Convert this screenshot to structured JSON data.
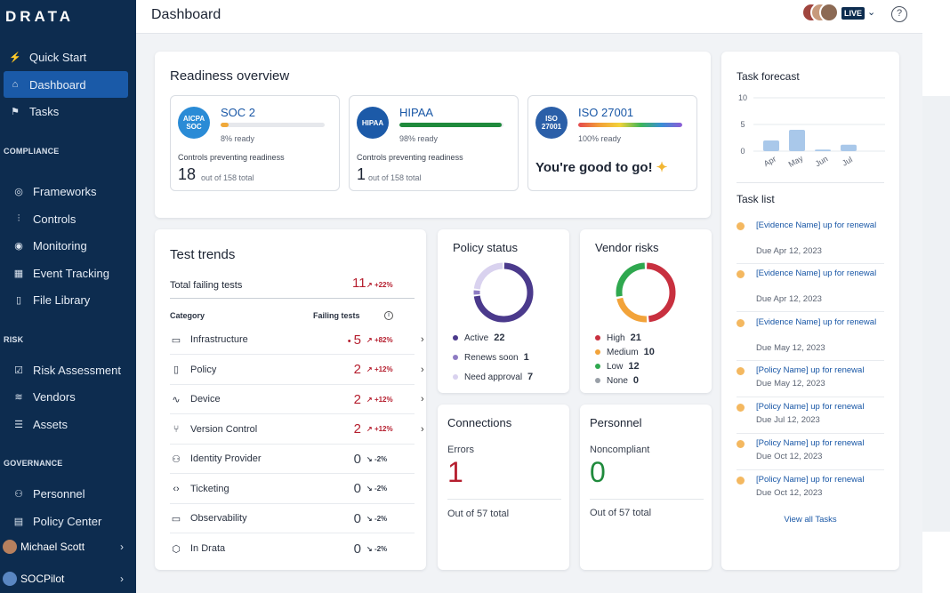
{
  "brand": "DRATA",
  "sidebar": {
    "top_items": [
      {
        "label": "Quick Start",
        "icon": "bolt-icon"
      },
      {
        "label": "Dashboard",
        "icon": "home-icon",
        "active": true
      },
      {
        "label": "Tasks",
        "icon": "flag-icon"
      }
    ],
    "sections": [
      {
        "title": "COMPLIANCE",
        "items": [
          {
            "label": "Frameworks",
            "icon": "compass-icon"
          },
          {
            "label": "Controls",
            "icon": "sliders-icon"
          },
          {
            "label": "Monitoring",
            "icon": "radar-icon"
          },
          {
            "label": "Event Tracking",
            "icon": "calendar-icon"
          },
          {
            "label": "File Library",
            "icon": "file-icon"
          }
        ]
      },
      {
        "title": "RISK",
        "items": [
          {
            "label": "Risk Assessment",
            "icon": "checkbox-icon"
          },
          {
            "label": "Vendors",
            "icon": "layers-icon"
          },
          {
            "label": "Assets",
            "icon": "list-icon"
          }
        ]
      },
      {
        "title": "GOVERNANCE",
        "items": [
          {
            "label": "Personnel",
            "icon": "people-icon"
          },
          {
            "label": "Policy Center",
            "icon": "document-icon"
          }
        ]
      }
    ],
    "user": {
      "name": "Michael Scott"
    },
    "workspace": {
      "name": "SOCPilot"
    }
  },
  "header": {
    "title": "Dashboard",
    "live_label": "LIVE"
  },
  "readiness": {
    "title": "Readiness overview",
    "frameworks": [
      {
        "name": "SOC 2",
        "badge": "AICPA SOC",
        "ready_pct": 8,
        "ready_text": "8% ready",
        "ctrl_label": "Controls preventing readiness",
        "count": "18",
        "total": "out of 158 total",
        "bar_color": "#f0a93a",
        "badge_color": "#2a8bd6"
      },
      {
        "name": "HIPAA",
        "badge": "HIPAA",
        "ready_pct": 98,
        "ready_text": "98% ready",
        "ctrl_label": "Controls preventing readiness",
        "count": "1",
        "total": "out of 158 total",
        "bar_color": "#1f8a3c",
        "badge_color": "#1c5aa8"
      },
      {
        "name": "ISO 27001",
        "badge": "ISO 27001",
        "ready_pct": 100,
        "ready_text": "100% ready",
        "good_text": "You're good to go!",
        "badge_color": "#2b5fa8"
      }
    ]
  },
  "test_trends": {
    "title": "Test trends",
    "total_label": "Total failing tests",
    "total_value": "11",
    "total_delta": "+22%",
    "col_category": "Category",
    "col_failing": "Failing tests",
    "rows": [
      {
        "label": "Infrastructure",
        "icon": "server-icon",
        "value": "5",
        "delta": "+82%",
        "bullet": "•",
        "red": true,
        "chevron": true
      },
      {
        "label": "Policy",
        "icon": "page-icon",
        "value": "2",
        "delta": "+12%",
        "red": true,
        "chevron": true
      },
      {
        "label": "Device",
        "icon": "pulse-icon",
        "value": "2",
        "delta": "+12%",
        "red": true,
        "chevron": true
      },
      {
        "label": "Version Control",
        "icon": "branch-icon",
        "value": "2",
        "delta": "+12%",
        "red": true,
        "chevron": true
      },
      {
        "label": "Identity Provider",
        "icon": "users-icon",
        "value": "0",
        "delta": "-2%",
        "red": false,
        "chevron": false
      },
      {
        "label": "Ticketing",
        "icon": "code-icon",
        "value": "0",
        "delta": "-2%",
        "red": false,
        "chevron": false
      },
      {
        "label": "Observability",
        "icon": "monitor-icon",
        "value": "0",
        "delta": "-2%",
        "red": false,
        "chevron": false
      },
      {
        "label": "In Drata",
        "icon": "cube-icon",
        "value": "0",
        "delta": "-2%",
        "red": false,
        "chevron": false
      }
    ]
  },
  "policy_status": {
    "title": "Policy status",
    "items": [
      {
        "label": "Active",
        "value": 22,
        "color": "#4b3a8c"
      },
      {
        "label": "Renews soon",
        "value": 1,
        "color": "#8e7cc3"
      },
      {
        "label": "Need approval",
        "value": 7,
        "color": "#d9d2ef"
      }
    ]
  },
  "vendor_risks": {
    "title": "Vendor risks",
    "items": [
      {
        "label": "High",
        "value": 21,
        "color": "#c8303f"
      },
      {
        "label": "Medium",
        "value": 10,
        "color": "#f2a33a"
      },
      {
        "label": "Low",
        "value": 12,
        "color": "#2fa84f"
      },
      {
        "label": "None",
        "value": 0,
        "color": "#9aa0a8"
      }
    ]
  },
  "connections": {
    "title": "Connections",
    "label": "Errors",
    "value": "1",
    "footer": "Out of 57 total"
  },
  "personnel": {
    "title": "Personnel",
    "label": "Noncompliant",
    "value": "0",
    "footer": "Out of 57 total"
  },
  "task_forecast": {
    "title": "Task forecast",
    "chart_data": {
      "type": "bar",
      "categories": [
        "Apr",
        "May",
        "Jun",
        "Jul"
      ],
      "values": [
        2,
        4,
        0.3,
        1.2
      ],
      "ylim": [
        0,
        10
      ],
      "yticks": [
        "10",
        "5",
        "0"
      ],
      "color": "#a9c8ea"
    }
  },
  "task_list": {
    "title": "Task list",
    "items": [
      {
        "name": "[Evidence Name] up for renewal",
        "due": "Due Apr 12, 2023"
      },
      {
        "name": "[Evidence Name] up for renewal",
        "due": "Due Apr 12, 2023"
      },
      {
        "name": "[Evidence Name] up for renewal",
        "due": "Due May 12, 2023"
      },
      {
        "name": "[Policy Name] up for renewal",
        "due": "Due May 12, 2023"
      },
      {
        "name": "[Policy Name] up for renewal",
        "due": "Due Jul 12, 2023"
      },
      {
        "name": "[Policy Name] up for renewal",
        "due": "Due Oct 12, 2023"
      },
      {
        "name": "[Policy Name] up for renewal",
        "due": "Due Oct 12, 2023"
      }
    ],
    "view_all": "View all Tasks"
  }
}
